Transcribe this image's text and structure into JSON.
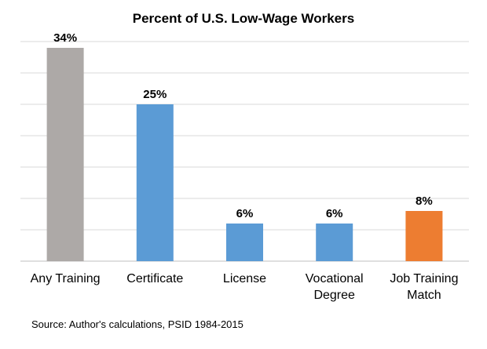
{
  "chart_data": {
    "type": "bar",
    "title": "Percent of U.S. Low-Wage Workers",
    "categories": [
      [
        "Any Training"
      ],
      [
        "Certificate"
      ],
      [
        "License"
      ],
      [
        "Vocational",
        "Degree"
      ],
      [
        "Job Training",
        "Match"
      ]
    ],
    "values": [
      34,
      25,
      6,
      6,
      8
    ],
    "value_labels": [
      "34%",
      "25%",
      "6%",
      "6%",
      "8%"
    ],
    "colors": [
      "#ada9a7",
      "#5b9bd5",
      "#5b9bd5",
      "#5b9bd5",
      "#ed7d31"
    ],
    "ylim": [
      0,
      35
    ],
    "grid": true,
    "xlabel": "",
    "ylabel": ""
  },
  "source": "Source: Author's calculations, PSID 1984-2015"
}
